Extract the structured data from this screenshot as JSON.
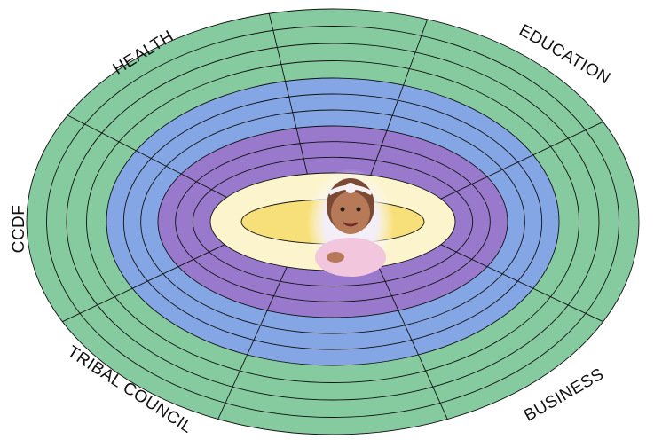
{
  "sectors": [
    {
      "label": "HEALTH"
    },
    {
      "label": "EDUCATION"
    },
    {
      "label": "CCDF"
    },
    {
      "label": "TRIBAL COUNCIL"
    },
    {
      "label": "BUSINESS"
    }
  ]
}
